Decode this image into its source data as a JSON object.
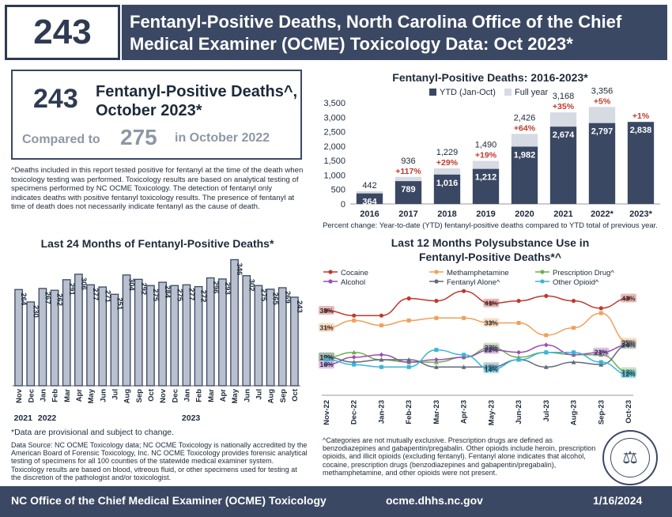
{
  "header": {
    "number": "243",
    "title_line1": "Fentanyl-Positive Deaths, North Carolina Office of the Chief",
    "title_line2": "Medical Examiner (OCME) Toxicology Data: Oct 2023*"
  },
  "summary": {
    "number": "243",
    "label_line1": "Fentanyl-Positive Deaths^,",
    "label_line2": "October 2023*",
    "compared_to": "Compared to",
    "compare_number": "275",
    "compare_suffix": "in October 2022"
  },
  "notes": {
    "deaths_note": "^Deaths included in this report tested positive for fentanyl at the time of the death when toxicology testing was performed. Toxicology results are based on analytical testing of specimens performed by NC OCME Toxicology. The detection of fentanyl only indicates deaths with positive fentanyl toxicology results. The presence of fentanyl at time of death does not necessarily indicate fentanyl as the cause of death.",
    "provisional": "*Data are provisional and subject to change.",
    "source": "Data Source: NC OCME Toxicology data; NC OCME Toxicology is nationally accredited by the American Board of Forensic Toxicology, Inc. NC OCME Toxicology provides forensic analytical testing of specimens for all 100 counties of the statewide medical examiner system. Toxicology results are based on blood, vitreous fluid, or other specimens used for testing at the discretion of the pathologist and/or toxicologist.",
    "categories": "^Categories are not mutually exclusive. Prescription drugs are defined as benzodiazepines and gabapentin/pregabalin. Other opioids include heroin, prescription opioids, and illicit opioids (excluding fentanyl). Fentanyl alone indicates that alcohol, cocaine, prescription drugs (benzodiazepines and gabapentin/pregabalin), methamphetamine, and other opioids were not present."
  },
  "footer": {
    "left": "NC Office of the Chief Medical Examiner (OCME) Toxicology",
    "center": "ocme.dhhs.nc.gov",
    "right": "1/16/2024"
  },
  "seal_icon": "nc-ocme-seal-icon",
  "chart_data": [
    {
      "type": "bar",
      "title": "Fentanyl-Positive Deaths: 2016-2023*",
      "categories": [
        "2016",
        "2017",
        "2018",
        "2019",
        "2020",
        "2021",
        "2022*",
        "2023*"
      ],
      "series": [
        {
          "name": "YTD (Jan-Oct)",
          "values": [
            364,
            789,
            1016,
            1212,
            1982,
            2674,
            2797,
            2838
          ],
          "color": "#3b4863"
        },
        {
          "name": "Full year",
          "values": [
            442,
            936,
            1229,
            1490,
            2426,
            3168,
            3356,
            null
          ],
          "color": "#d6dae3"
        }
      ],
      "ytd_labels": [
        "364",
        "789",
        "1,016",
        "1,212",
        "1,982",
        "2,674",
        "2,797",
        "2,838"
      ],
      "full_labels": [
        "442",
        "936",
        "1,229",
        "1,490",
        "2,426",
        "3,168",
        "3,356",
        ""
      ],
      "pct_change": [
        "",
        "+117%",
        "+29%",
        "+19%",
        "+64%",
        "+35%",
        "+5%",
        "+1%"
      ],
      "yticks": [
        "0",
        "500",
        "1,000",
        "1,500",
        "2,000",
        "2,500",
        "3,000",
        "3,500"
      ],
      "ylim": [
        0,
        3500
      ],
      "caption": "Percent change: Year-to-date (YTD) fentanyl-positive deaths compared to YTD total of previous year."
    },
    {
      "type": "bar",
      "title": "Last 24 Months of Fentanyl-Positive Deaths*",
      "categories": [
        "Nov",
        "Dec",
        "Jan",
        "Feb",
        "Mar",
        "Apr",
        "May",
        "Jun",
        "Jul",
        "Aug",
        "Sep",
        "Oct",
        "Nov",
        "Dec",
        "Jan",
        "Feb",
        "Mar",
        "Apr",
        "May",
        "Jun",
        "Jul",
        "Aug",
        "Sep",
        "Oct"
      ],
      "values": [
        264,
        230,
        267,
        262,
        291,
        306,
        277,
        271,
        251,
        304,
        292,
        275,
        284,
        275,
        277,
        272,
        296,
        293,
        346,
        302,
        275,
        265,
        269,
        243
      ],
      "year_labels": [
        {
          "index": 0,
          "label": "2021"
        },
        {
          "index": 2,
          "label": "2022"
        },
        {
          "index": 14,
          "label": "2023"
        }
      ],
      "ylim": [
        0,
        360
      ]
    },
    {
      "type": "line",
      "title_line1": "Last 12 Months Polysubstance Use in",
      "title_line2": "Fentanyl-Positive Deaths*^",
      "x": [
        "Nov-22",
        "Dec-22",
        "Jan-23",
        "Feb-23",
        "Mar-23",
        "Apr-23",
        "May-23",
        "Jun-23",
        "Jul-23",
        "Aug-23",
        "Sep-23",
        "Oct-23"
      ],
      "ylim": [
        8,
        48
      ],
      "series": [
        {
          "name": "Cocaine",
          "color": "#c0392b",
          "marker": "circle",
          "values": [
            38,
            36,
            36,
            43,
            42,
            46,
            41,
            42,
            44,
            42,
            39,
            43
          ],
          "labels": {
            "0": "38%",
            "6": "41%",
            "11": "43%"
          }
        },
        {
          "name": "Methamphetamine",
          "color": "#f0a05a",
          "marker": "square",
          "values": [
            31,
            34,
            32,
            34,
            35,
            35,
            33,
            33,
            28,
            31,
            37,
            25
          ],
          "labels": {
            "0": "31%",
            "6": "33%",
            "11": "25%"
          }
        },
        {
          "name": "Prescription Drug^",
          "color": "#6fae4f",
          "marker": "triangle",
          "values": [
            19,
            21,
            18,
            17,
            17,
            19,
            23,
            19,
            21,
            20,
            20,
            13
          ],
          "labels": {
            "0": "19%",
            "6": "23%",
            "11": "13%"
          }
        },
        {
          "name": "Alcohol",
          "color": "#9b4fb3",
          "marker": "diamond",
          "values": [
            16,
            19,
            20,
            17,
            18,
            19,
            22,
            21,
            24,
            20,
            21,
            24
          ],
          "labels": {
            "0": "16%",
            "6": "22%",
            "10": "21%"
          }
        },
        {
          "name": "Fentanyl Alone^",
          "color": "#5f6b7a",
          "marker": "triangle",
          "values": [
            19,
            17,
            18,
            18,
            15,
            15,
            15,
            18,
            15,
            17,
            16,
            24
          ],
          "labels": {
            "0": "19%",
            "6": "15%",
            "11": "24%"
          }
        },
        {
          "name": "Other Opioid^",
          "color": "#38b6d8",
          "marker": "square",
          "values": [
            18,
            16,
            15,
            15,
            22,
            20,
            14,
            18,
            21,
            21,
            17,
            12
          ],
          "labels": {
            "6": "14%",
            "11": "12%"
          }
        }
      ]
    }
  ]
}
